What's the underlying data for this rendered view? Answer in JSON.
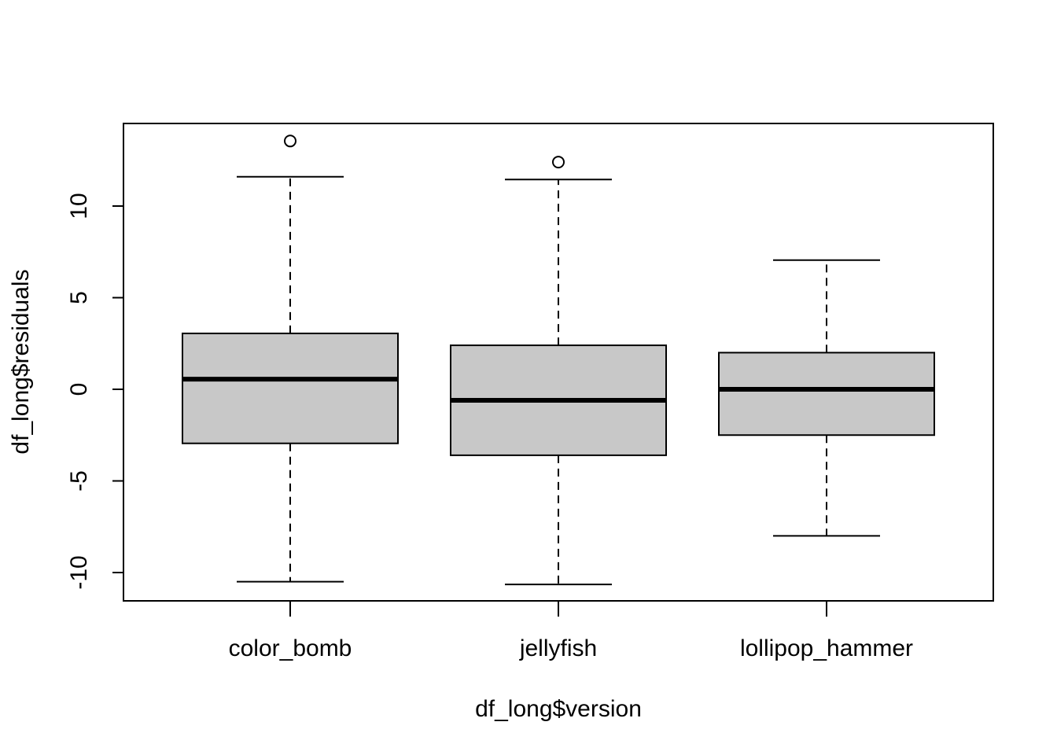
{
  "chart_data": {
    "type": "boxplot",
    "title": "",
    "xlabel": "df_long$version",
    "ylabel": "df_long$residuals",
    "ylim": [
      -11.5,
      14.5
    ],
    "yticks": [
      -10,
      -5,
      0,
      5,
      10
    ],
    "ytick_labels": [
      "-10",
      "-5",
      "0",
      "5",
      "10"
    ],
    "categories": [
      "color_bomb",
      "jellyfish",
      "lollipop_hammer"
    ],
    "boxes": [
      {
        "category": "color_bomb",
        "whisker_low": -10.5,
        "q1": -2.95,
        "median": 0.55,
        "q3": 3.05,
        "whisker_high": 11.6,
        "outliers": [
          13.55
        ]
      },
      {
        "category": "jellyfish",
        "whisker_low": -10.65,
        "q1": -3.6,
        "median": -0.6,
        "q3": 2.4,
        "whisker_high": 11.45,
        "outliers": [
          12.4
        ]
      },
      {
        "category": "lollipop_hammer",
        "whisker_low": -8.0,
        "q1": -2.5,
        "median": 0.0,
        "q3": 2.0,
        "whisker_high": 7.05,
        "outliers": []
      }
    ],
    "grid": false,
    "box_fill": "#c8c8c8",
    "line_color": "#000000"
  }
}
